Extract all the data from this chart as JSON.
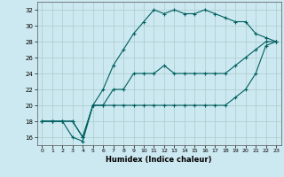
{
  "xlabel": "Humidex (Indice chaleur)",
  "bg_color": "#cce8f0",
  "line_color": "#006060",
  "grid_color": "#aacccc",
  "xlim": [
    -0.5,
    23.5
  ],
  "ylim": [
    15.0,
    33.0
  ],
  "yticks": [
    16,
    18,
    20,
    22,
    24,
    26,
    28,
    30,
    32
  ],
  "xticks": [
    0,
    1,
    2,
    3,
    4,
    5,
    6,
    7,
    8,
    9,
    10,
    11,
    12,
    13,
    14,
    15,
    16,
    17,
    18,
    19,
    20,
    21,
    22,
    23
  ],
  "line1_x": [
    0,
    1,
    2,
    3,
    4,
    5,
    6,
    7,
    8,
    9,
    10,
    11,
    12,
    13,
    14,
    15,
    16,
    17,
    18,
    19,
    20,
    21,
    22,
    23
  ],
  "line1_y": [
    18,
    18,
    18,
    16,
    15.5,
    20,
    22,
    25,
    27,
    29,
    30.5,
    32,
    31.5,
    32,
    31.5,
    31.5,
    32,
    31.5,
    31,
    30.5,
    30.5,
    29,
    28.5,
    28
  ],
  "line2_x": [
    0,
    1,
    2,
    3,
    4,
    5,
    6,
    7,
    8,
    9,
    10,
    11,
    12,
    13,
    14,
    15,
    16,
    17,
    18,
    19,
    20,
    21,
    22,
    23
  ],
  "line2_y": [
    18,
    18,
    18,
    18,
    16,
    20,
    20,
    22,
    22,
    24,
    24,
    24,
    25,
    24,
    24,
    24,
    24,
    24,
    24,
    25,
    26,
    27,
    28,
    28
  ],
  "line3_x": [
    0,
    1,
    2,
    3,
    4,
    5,
    6,
    7,
    8,
    9,
    10,
    11,
    12,
    13,
    14,
    15,
    16,
    17,
    18,
    19,
    20,
    21,
    22,
    23
  ],
  "line3_y": [
    18,
    18,
    18,
    18,
    16,
    20,
    20,
    20,
    20,
    20,
    20,
    20,
    20,
    20,
    20,
    20,
    20,
    20,
    20,
    21,
    22,
    24,
    27.5,
    28
  ]
}
